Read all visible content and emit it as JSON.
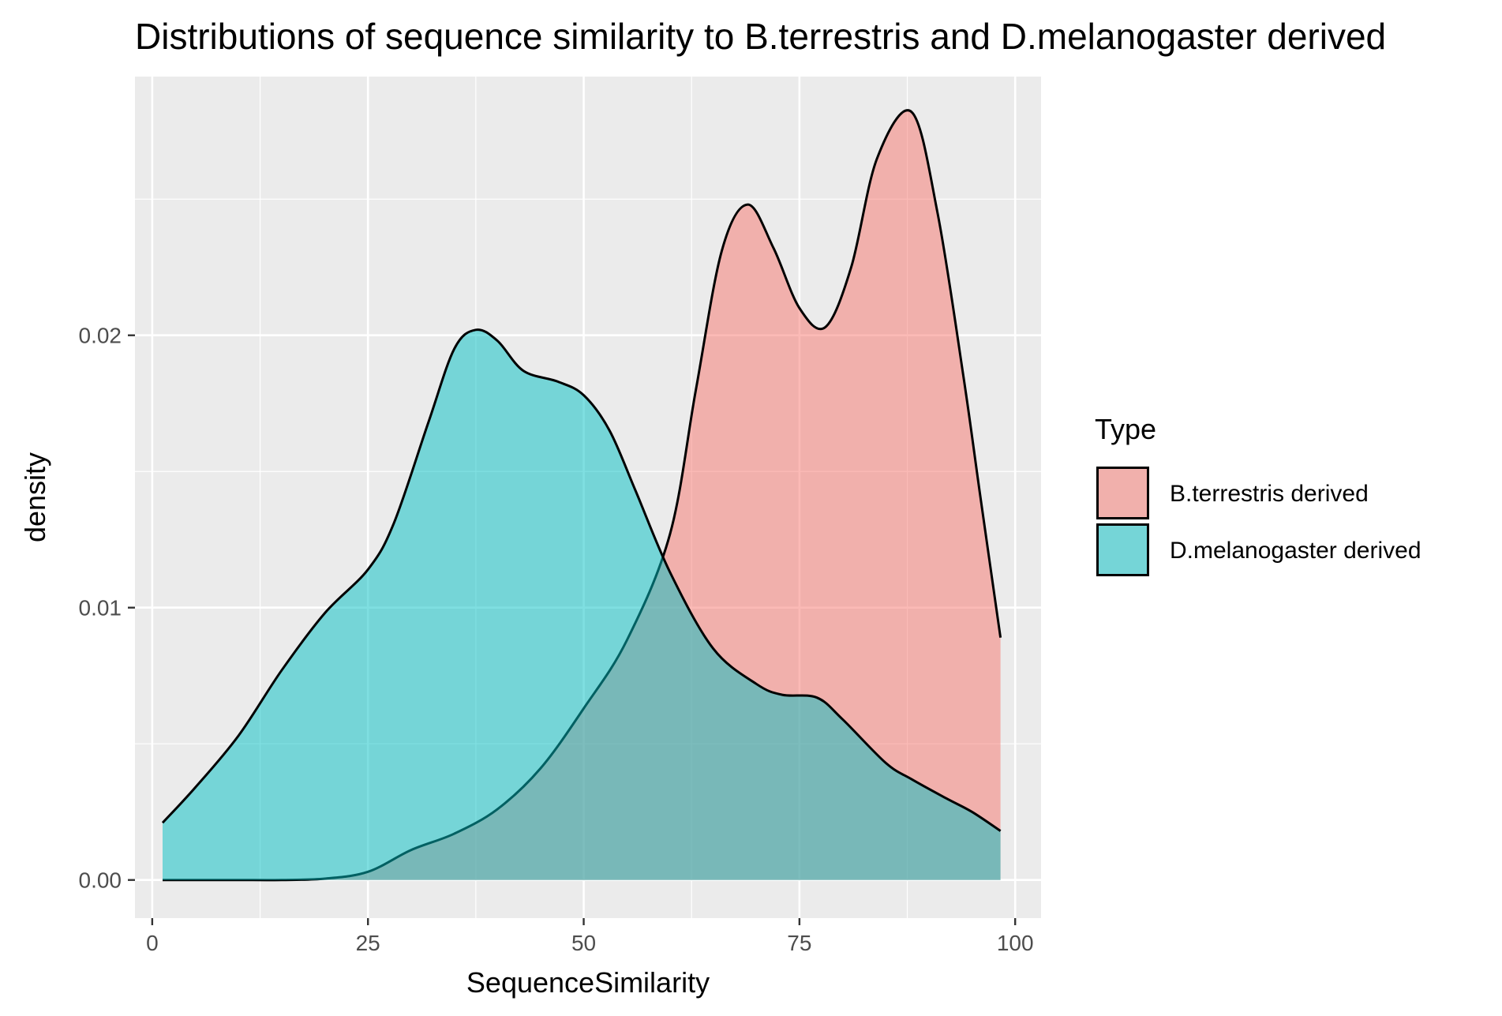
{
  "chart_data": {
    "type": "area",
    "title": "Distributions of sequence similarity to B.terrestris and D.melanogaster derived",
    "xlabel": "SequenceSimilarity",
    "ylabel": "density",
    "xlim": [
      -2,
      103
    ],
    "ylim": [
      -0.0014,
      0.0295
    ],
    "x_ticks": [
      0,
      25,
      50,
      75,
      100
    ],
    "x_tick_labels": [
      "0",
      "25",
      "50",
      "75",
      "100"
    ],
    "y_ticks": [
      0.0,
      0.01,
      0.02
    ],
    "y_tick_labels": [
      "0.00",
      "0.01",
      "0.02"
    ],
    "grid": true,
    "legend": {
      "title": "Type",
      "position": "right"
    },
    "series": [
      {
        "name": "B.terrestris derived",
        "color": "#F8766D",
        "x": [
          1.2,
          5,
          10,
          15,
          20,
          25,
          30,
          35,
          40,
          45,
          50,
          55,
          60,
          63,
          66,
          69,
          72,
          75,
          78,
          81,
          84,
          88,
          91,
          94,
          96,
          98.3
        ],
        "y": [
          0.0,
          0.0,
          0.0,
          0.0,
          5e-05,
          0.0003,
          0.0011,
          0.0017,
          0.0026,
          0.0041,
          0.0063,
          0.0088,
          0.0127,
          0.018,
          0.0231,
          0.0248,
          0.0232,
          0.021,
          0.0203,
          0.0225,
          0.0265,
          0.0282,
          0.0245,
          0.0185,
          0.014,
          0.0089
        ]
      },
      {
        "name": "D.melanogaster derived",
        "color": "#00BFC4",
        "x": [
          1.2,
          5,
          10,
          15,
          20,
          25,
          28,
          32,
          35,
          37.5,
          40,
          43,
          47,
          50,
          53,
          56,
          60,
          65,
          70,
          73,
          77,
          80,
          85,
          88,
          92,
          95,
          98.3
        ],
        "y": [
          0.0021,
          0.0034,
          0.0053,
          0.0077,
          0.0098,
          0.0114,
          0.0131,
          0.0168,
          0.0195,
          0.0202,
          0.0198,
          0.0187,
          0.0183,
          0.0178,
          0.0165,
          0.0143,
          0.0113,
          0.0085,
          0.0072,
          0.0068,
          0.0067,
          0.0059,
          0.0043,
          0.0037,
          0.003,
          0.0025,
          0.0018
        ]
      }
    ]
  }
}
